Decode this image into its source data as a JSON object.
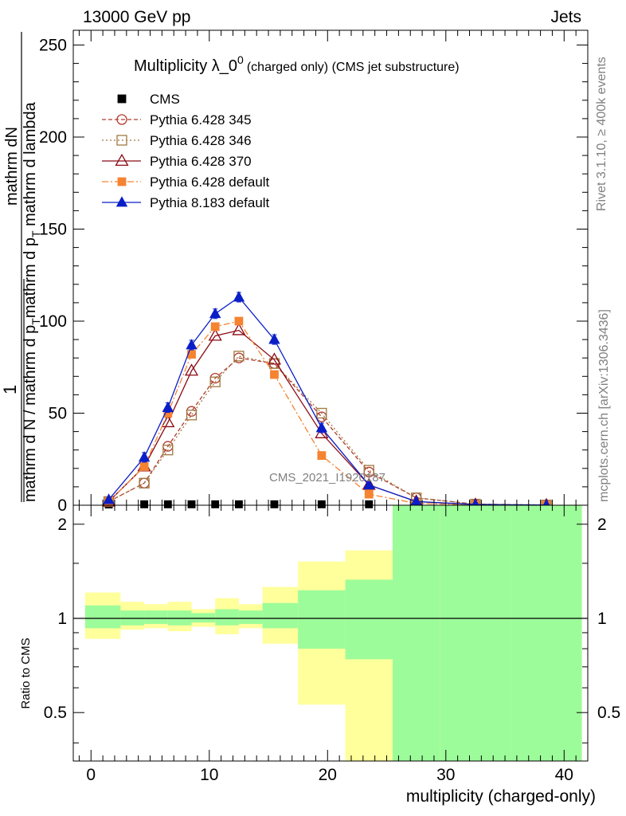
{
  "header": {
    "energy": "13000 GeV pp",
    "category": "Jets"
  },
  "side": {
    "rivet": "Rivet 3.1.10, ≥ 400k events",
    "mcplots": "mcplots.cern.ch [arXiv:1306.3436]"
  },
  "chart_data": [
    {
      "type": "line",
      "title_main": "Multiplicity λ_0",
      "title_sup": "0",
      "title_sub": "(charged only) (CMS jet substructure)",
      "ylabel_top": "mathrm dN",
      "ylabel_top2": "1",
      "ylabel_bottom": "mathrm d N / mathrm d p",
      "ylabel_bottom_sub": "T",
      "ylabel_b2": "mathrm d p",
      "ylabel_b2_sub": "T",
      "ylabel_b3": " mathrm d lambda",
      "ylabel_b4": "mathrm d N / mathrm d p",
      "ylabel_b4_sub": "T",
      "ylabel_b5": "mathrm d p",
      "ylabel_b5_sub": "T",
      "ylabel_b6": " mathrm d lambda",
      "ylabel_num": "mathrm dN",
      "ylabel_den_a": "mathrm d N / mathrm d p",
      "ylabel_den_sub": "T",
      "ylabel_den_b": " mathrm d p",
      "ylabel_den_sub2": "T",
      "ylabel_den_c": " mathrm d lambda",
      "ylabel_num2": "1",
      "ylabel_den2": "mathrm d N / mathrm d p",
      "xlim": [
        -1.5,
        42
      ],
      "ylim": [
        0,
        258
      ],
      "yticks": [
        0,
        50,
        100,
        150,
        200,
        250
      ],
      "watermark": "CMS_2021_I1920187",
      "x": [
        1.5,
        4.5,
        6.5,
        8.5,
        10.5,
        12.5,
        15.5,
        19.5,
        23.5,
        27.5,
        32.5,
        38.5
      ],
      "series": [
        {
          "name": "CMS",
          "color": "#000000",
          "values": [
            0.4,
            0.5,
            0.5,
            0.5,
            0.5,
            0.5,
            0.5,
            0.5,
            0.5,
            0.3,
            0.1,
            0.05
          ]
        },
        {
          "name": "Pythia 6.428 345",
          "color": "#b03a2e",
          "values": [
            2,
            12,
            32,
            51,
            69,
            80,
            77,
            48,
            18,
            4,
            0.6,
            0.1
          ]
        },
        {
          "name": "Pythia 6.428 346",
          "color": "#a07840",
          "values": [
            2,
            12,
            30,
            49,
            67,
            81,
            77,
            50,
            19,
            4,
            0.6,
            0.1
          ]
        },
        {
          "name": "Pythia 6.428 370",
          "color": "#8b0a14",
          "values": [
            2,
            21,
            45,
            73,
            92,
            95,
            79,
            39,
            11,
            2,
            0.3,
            0.05
          ]
        },
        {
          "name": "Pythia 6.428 default",
          "color": "#f58330",
          "values": [
            2,
            21,
            50,
            82,
            97,
            100,
            71,
            27,
            6,
            1,
            0.2,
            0.05
          ]
        },
        {
          "name": "Pythia 8.183 default",
          "color": "#0a1ec8",
          "values": [
            3,
            26,
            53,
            87,
            104,
            113,
            90,
            42,
            11,
            2,
            0.4,
            0.1
          ]
        }
      ]
    },
    {
      "type": "area",
      "ylabel": "Ratio to CMS",
      "xlabel": "multiplicity (charged-only)",
      "xticks": [
        0,
        10,
        20,
        30,
        40
      ],
      "yticks": [
        0.5,
        1,
        2
      ],
      "ylim": [
        0.35,
        2.3
      ],
      "bin_edges": [
        -0.5,
        2.5,
        4.5,
        6.5,
        8.5,
        10.5,
        12.5,
        14.5,
        17.5,
        21.5,
        25.5,
        29.5,
        35.5,
        41.5
      ],
      "green_band": [
        [
          0.93,
          1.1
        ],
        [
          0.95,
          1.06
        ],
        [
          0.96,
          1.06
        ],
        [
          0.95,
          1.06
        ],
        [
          0.97,
          1.04
        ],
        [
          0.95,
          1.07
        ],
        [
          0.96,
          1.06
        ],
        [
          0.93,
          1.12
        ],
        [
          0.8,
          1.23
        ],
        [
          0.74,
          1.33
        ],
        [
          0.35,
          2.3
        ],
        [
          0.35,
          2.3
        ],
        [
          0.35,
          2.3
        ]
      ],
      "yellow_band": [
        [
          0.86,
          1.21
        ],
        [
          0.92,
          1.13
        ],
        [
          0.93,
          1.11
        ],
        [
          0.91,
          1.13
        ],
        [
          0.94,
          1.07
        ],
        [
          0.89,
          1.16
        ],
        [
          0.93,
          1.11
        ],
        [
          0.83,
          1.26
        ],
        [
          0.53,
          1.52
        ],
        [
          0.35,
          1.65
        ],
        [
          0.35,
          2.3
        ],
        [
          0.35,
          2.25
        ],
        [
          0.35,
          2.3
        ]
      ]
    }
  ]
}
